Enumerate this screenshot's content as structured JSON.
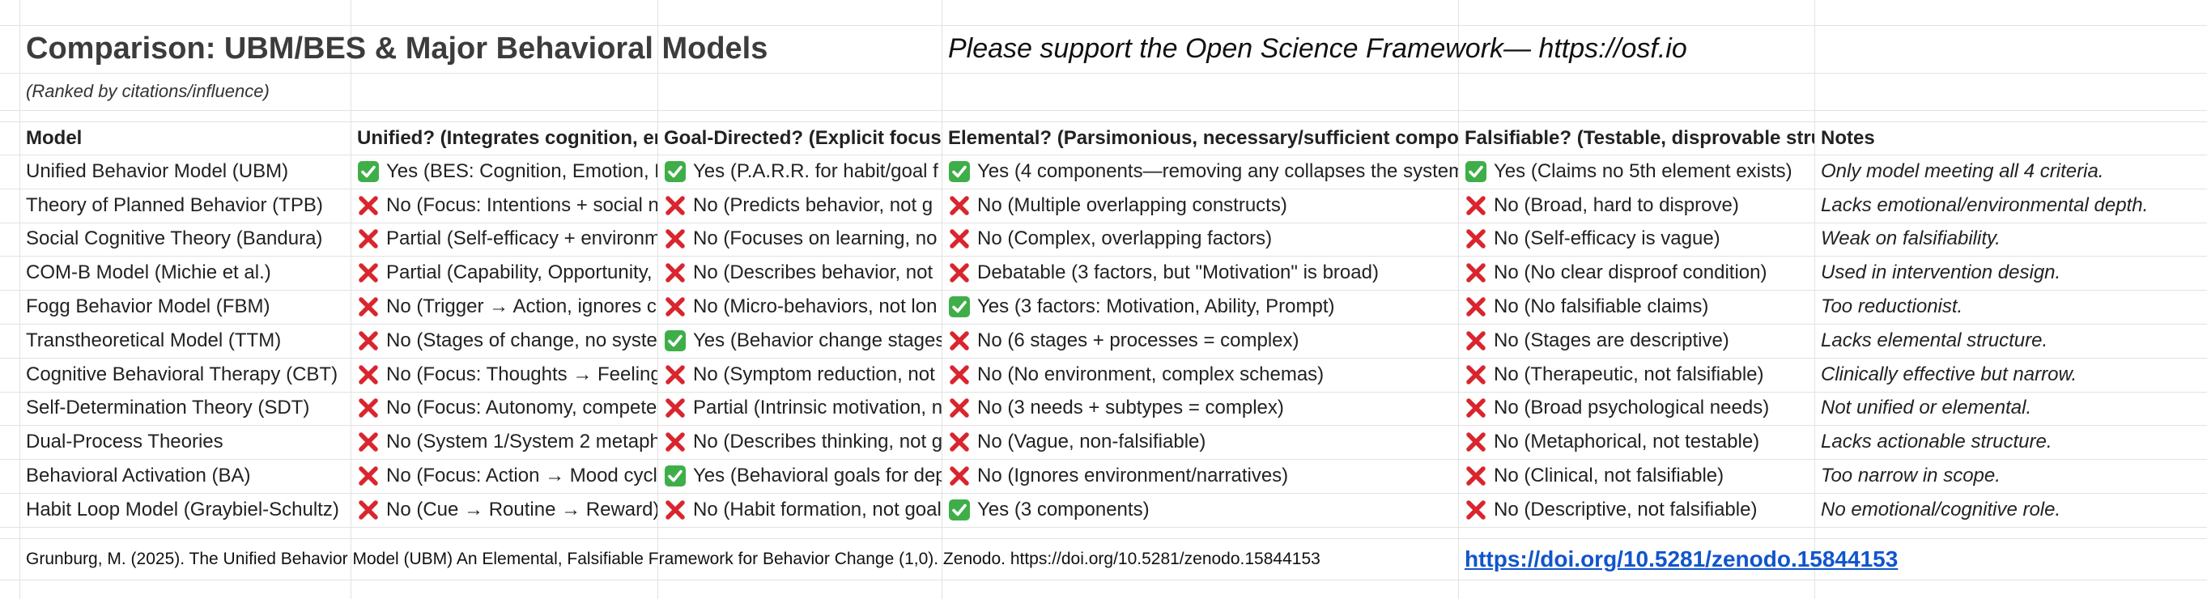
{
  "header": {
    "title": "Comparison: UBM/BES & Major Behavioral Models",
    "notice": "Please support the Open Science Framework— https://osf.io",
    "subtitle": "(Ranked by citations/influence)"
  },
  "table": {
    "columns": [
      "Model",
      "Unified? (Integrates cognition, em",
      "Goal-Directed? (Explicit focus",
      "Elemental? (Parsimonious, necessary/sufficient compo",
      "Falsifiable? (Testable, disprovable stru",
      "Notes"
    ],
    "rows": [
      [
        "Unified Behavior Model (UBM)",
        {
          "icon": "check",
          "text": "Yes (BES: Cognition, Emotion, E"
        },
        {
          "icon": "check",
          "text": "Yes (P.A.R.R. for habit/goal f"
        },
        {
          "icon": "check",
          "text": "Yes (4 components—removing any collapses the system"
        },
        {
          "icon": "check",
          "text": "Yes (Claims no 5th element exists)"
        },
        "Only model meeting all 4 criteria."
      ],
      [
        "Theory of Planned Behavior (TPB)",
        {
          "icon": "cross",
          "text": "No (Focus: Intentions + social n"
        },
        {
          "icon": "cross",
          "text": "No (Predicts behavior, not g"
        },
        {
          "icon": "cross",
          "text": "No (Multiple overlapping constructs)"
        },
        {
          "icon": "cross",
          "text": "No (Broad, hard to disprove)"
        },
        "Lacks emotional/environmental depth."
      ],
      [
        "Social Cognitive Theory (Bandura)",
        {
          "icon": "cross",
          "text": "Partial (Self-efficacy + environm"
        },
        {
          "icon": "cross",
          "text": "No (Focuses on learning, no"
        },
        {
          "icon": "cross",
          "text": "No (Complex, overlapping factors)"
        },
        {
          "icon": "cross",
          "text": "No (Self-efficacy is vague)"
        },
        "Weak on falsifiability."
      ],
      [
        "COM-B Model (Michie et al.)",
        {
          "icon": "cross",
          "text": "Partial (Capability, Opportunity,"
        },
        {
          "icon": "cross",
          "text": "No (Describes behavior, not"
        },
        {
          "icon": "cross",
          "text": "Debatable (3 factors, but \"Motivation\" is broad)"
        },
        {
          "icon": "cross",
          "text": "No (No clear disproof condition)"
        },
        "Used in intervention design."
      ],
      [
        "Fogg Behavior Model (FBM)",
        {
          "icon": "cross",
          "text": "No (Trigger → Action, ignores c"
        },
        {
          "icon": "cross",
          "text": "No (Micro-behaviors, not lon"
        },
        {
          "icon": "check",
          "text": "Yes (3 factors: Motivation, Ability, Prompt)"
        },
        {
          "icon": "cross",
          "text": "No (No falsifiable claims)"
        },
        "Too reductionist."
      ],
      [
        "Transtheoretical Model (TTM)",
        {
          "icon": "cross",
          "text": "No (Stages of change, no syste"
        },
        {
          "icon": "check",
          "text": "Yes (Behavior change stages"
        },
        {
          "icon": "cross",
          "text": "No (6 stages + processes = complex)"
        },
        {
          "icon": "cross",
          "text": "No (Stages are descriptive)"
        },
        "Lacks elemental structure."
      ],
      [
        "Cognitive Behavioral Therapy (CBT)",
        {
          "icon": "cross",
          "text": "No (Focus: Thoughts → Feeling"
        },
        {
          "icon": "cross",
          "text": "No (Symptom reduction, not"
        },
        {
          "icon": "cross",
          "text": "No (No environment, complex schemas)"
        },
        {
          "icon": "cross",
          "text": "No (Therapeutic, not falsifiable)"
        },
        "Clinically effective but narrow."
      ],
      [
        "Self-Determination Theory (SDT)",
        {
          "icon": "cross",
          "text": "No (Focus: Autonomy, compete"
        },
        {
          "icon": "cross",
          "text": "Partial (Intrinsic motivation, n"
        },
        {
          "icon": "cross",
          "text": "No (3 needs + subtypes = complex)"
        },
        {
          "icon": "cross",
          "text": "No (Broad psychological needs)"
        },
        "Not unified or elemental."
      ],
      [
        "Dual-Process Theories",
        {
          "icon": "cross",
          "text": "No (System 1/System 2 metaph"
        },
        {
          "icon": "cross",
          "text": "No (Describes thinking, not g"
        },
        {
          "icon": "cross",
          "text": "No (Vague, non-falsifiable)"
        },
        {
          "icon": "cross",
          "text": "No (Metaphorical, not testable)"
        },
        "Lacks actionable structure."
      ],
      [
        "Behavioral Activation (BA)",
        {
          "icon": "cross",
          "text": "No (Focus: Action → Mood cycl"
        },
        {
          "icon": "check",
          "text": "Yes (Behavioral goals for dep"
        },
        {
          "icon": "cross",
          "text": "No (Ignores environment/narratives)"
        },
        {
          "icon": "cross",
          "text": "No (Clinical, not falsifiable)"
        },
        "Too narrow in scope."
      ],
      [
        "Habit Loop Model (Graybiel-Schultz)",
        {
          "icon": "cross",
          "text": "No (Cue → Routine → Reward)"
        },
        {
          "icon": "cross",
          "text": "No (Habit formation, not goal"
        },
        {
          "icon": "check",
          "text": "Yes (3 components)"
        },
        {
          "icon": "cross",
          "text": "No (Descriptive, not falsifiable)"
        },
        "No emotional/cognitive role."
      ]
    ]
  },
  "footer": {
    "citation": "Grunburg, M. (2025). The Unified Behavior Model (UBM) An Elemental, Falsifiable Framework for Behavior Change (1,0). Zenodo. https://doi.org/10.5281/zenodo.15844153",
    "link": "https://doi.org/10.5281/zenodo.15844153 "
  }
}
